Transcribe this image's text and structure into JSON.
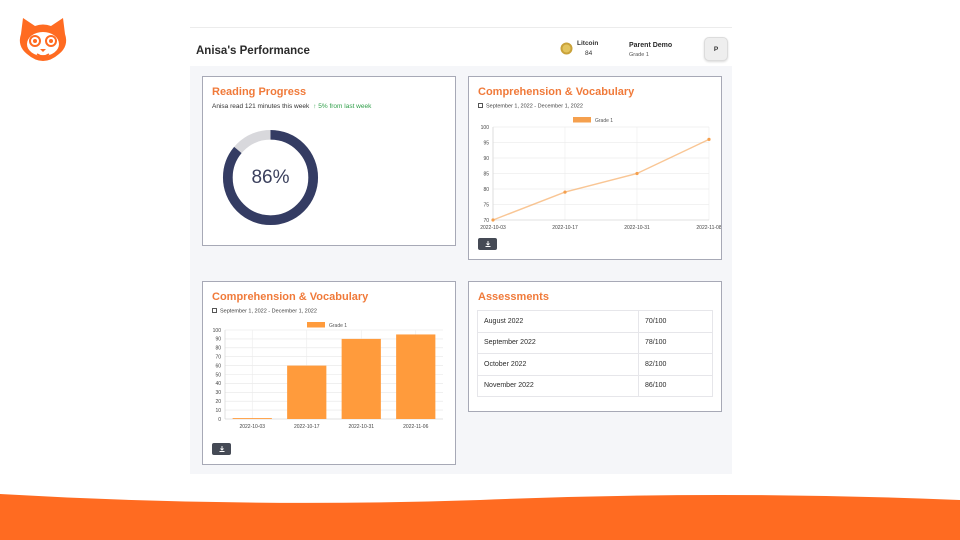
{
  "brand": {
    "logo_icon": "cat-face-icon",
    "accent": "#ff6b21"
  },
  "header": {
    "title": "Anisa's Performance",
    "coin_name": "Litcoin",
    "coin_amount": "84",
    "parent_name": "Parent Demo",
    "parent_grade": "Grade 1",
    "avatar_initial": "P"
  },
  "reading": {
    "title": "Reading Progress",
    "summary": "Anisa read 121 minutes this week",
    "delta": "↑ 5% from last week",
    "percent_value": 86,
    "percent_label": "86%"
  },
  "comprehension_line": {
    "title": "Comprehension & Vocabulary",
    "date_range": "September 1, 2022 - December 1, 2022",
    "download_icon": "download-icon"
  },
  "comprehension_bar": {
    "title": "Comprehension & Vocabulary",
    "date_range": "September 1, 2022 - December 1, 2022",
    "download_icon": "download-icon"
  },
  "assessments": {
    "title": "Assessments",
    "rows": [
      {
        "month": "August 2022",
        "score": "70/100"
      },
      {
        "month": "September 2022",
        "score": "78/100"
      },
      {
        "month": "October 2022",
        "score": "82/100"
      },
      {
        "month": "November 2022",
        "score": "86/100"
      }
    ]
  },
  "chart_data": [
    {
      "type": "line",
      "categories": [
        "2022-10-03",
        "2022-10-17",
        "2022-10-31",
        "2022-11-08"
      ],
      "series": [
        {
          "name": "Grade 1",
          "values": [
            70,
            79,
            85,
            96
          ]
        }
      ],
      "ylim": [
        70,
        100
      ],
      "yticks": [
        70,
        75,
        80,
        85,
        90,
        95,
        100
      ],
      "grid": true,
      "legend": "top-center",
      "color": "#f5a04e"
    },
    {
      "type": "bar",
      "categories": [
        "2022-10-03",
        "2022-10-17",
        "2022-10-31",
        "2022-11-06"
      ],
      "series": [
        {
          "name": "Grade 1",
          "values": [
            1,
            60,
            90,
            95
          ]
        }
      ],
      "ylim": [
        0,
        100
      ],
      "yticks": [
        0,
        10,
        20,
        30,
        40,
        50,
        60,
        70,
        80,
        90,
        100
      ],
      "grid": true,
      "legend": "top-center",
      "color": "#ff9b3c"
    }
  ]
}
